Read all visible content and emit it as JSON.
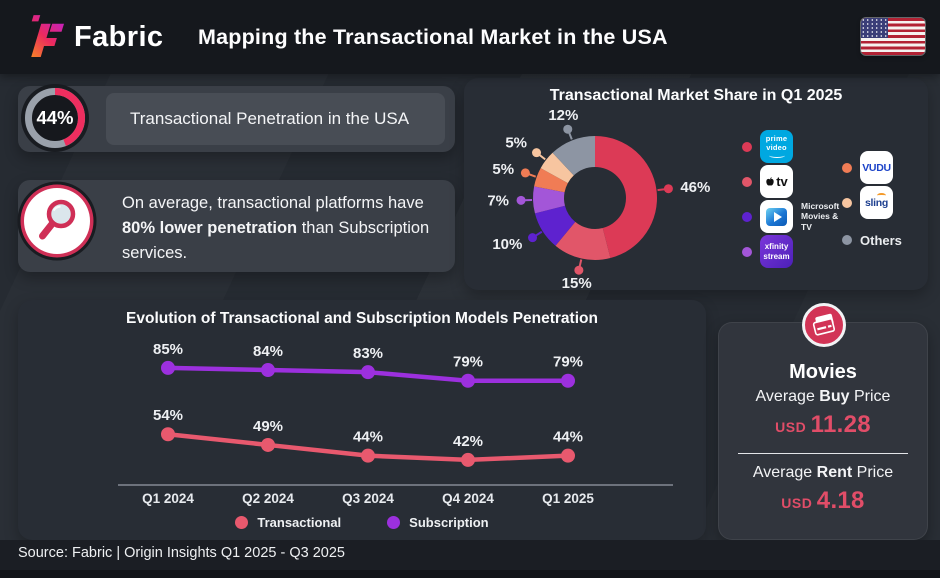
{
  "header": {
    "brand": "Fabric",
    "title": "Mapping the Transactional Market in the USA"
  },
  "penetration_card": {
    "value_pct": 44,
    "value_label": "44%",
    "text": "Transactional Penetration in the USA",
    "ring_color": "#ee2e5f",
    "ring_track_color": "#9aa1ab"
  },
  "insight_card": {
    "prefix": "On average, transactional platforms have ",
    "bold": "80% lower penetration",
    "suffix": " than Subscription services."
  },
  "market_share_panel": {
    "legend": {
      "col1": [
        {
          "name": "Prime Video",
          "dot_color": "#dc3a56",
          "logo_lines": [
            "prime",
            "video"
          ]
        },
        {
          "name": "Apple TV",
          "dot_color": "#e15669",
          "logo_text": "tv"
        },
        {
          "name": "Microsoft Movies & TV",
          "dot_color": "#5e22cf",
          "caption_lines": [
            "Microsoft",
            "Movies & TV"
          ]
        },
        {
          "name": "Xfinity Stream",
          "dot_color": "#a356d8",
          "logo_lines": [
            "xfinity",
            "stream"
          ]
        }
      ],
      "col2": [
        {
          "name": "VUDU",
          "dot_color": "#f07c55",
          "logo_text": "VUDU"
        },
        {
          "name": "Sling",
          "dot_color": "#f7c5a0",
          "logo_text": "sling"
        },
        {
          "name": "Others",
          "dot_color": "#8d95a3",
          "label": "Others"
        }
      ]
    }
  },
  "movies_card": {
    "title": "Movies",
    "accent_color": "#e14d68",
    "buy": {
      "prefix": "Average ",
      "bold": "Buy",
      "suffix": " Price",
      "currency": "USD",
      "amount": "11.28"
    },
    "rent": {
      "prefix": "Average ",
      "bold": "Rent",
      "suffix": " Price",
      "currency": "USD",
      "amount": "4.18"
    }
  },
  "footer": {
    "source": "Source: Fabric | Origin Insights Q1 2025 - Q3 2025"
  },
  "chart_data": [
    {
      "type": "pie",
      "donut": true,
      "title": "Transactional Market Share in Q1 2025",
      "start_angle_deg": 0,
      "direction": "clockwise",
      "data_label_format": "{value}%",
      "slices": [
        {
          "label": "Prime Video",
          "value_pct": 46,
          "color": "#dc3a56"
        },
        {
          "label": "Apple TV",
          "value_pct": 15,
          "color": "#e15669"
        },
        {
          "label": "Microsoft Movies & TV",
          "value_pct": 10,
          "color": "#5e22cf"
        },
        {
          "label": "Xfinity Stream",
          "value_pct": 7,
          "color": "#a356d8"
        },
        {
          "label": "VUDU",
          "value_pct": 5,
          "color": "#f07c55"
        },
        {
          "label": "Sling",
          "value_pct": 5,
          "color": "#f7c5a0"
        },
        {
          "label": "Others",
          "value_pct": 12,
          "color": "#8d95a3"
        }
      ]
    },
    {
      "type": "line",
      "title": "Evolution of Transactional and Subscription Models Penetration",
      "categories": [
        "Q1 2024",
        "Q2 2024",
        "Q3 2024",
        "Q4 2024",
        "Q1 2025"
      ],
      "series": [
        {
          "name": "Transactional",
          "color": "#e8596e",
          "values": [
            54,
            49,
            44,
            42,
            44
          ]
        },
        {
          "name": "Subscription",
          "color": "#9c30de",
          "values": [
            85,
            84,
            83,
            79,
            79
          ]
        }
      ],
      "unit": "%",
      "ylim": [
        0,
        100
      ],
      "grid": false,
      "legend_position": "bottom"
    }
  ]
}
